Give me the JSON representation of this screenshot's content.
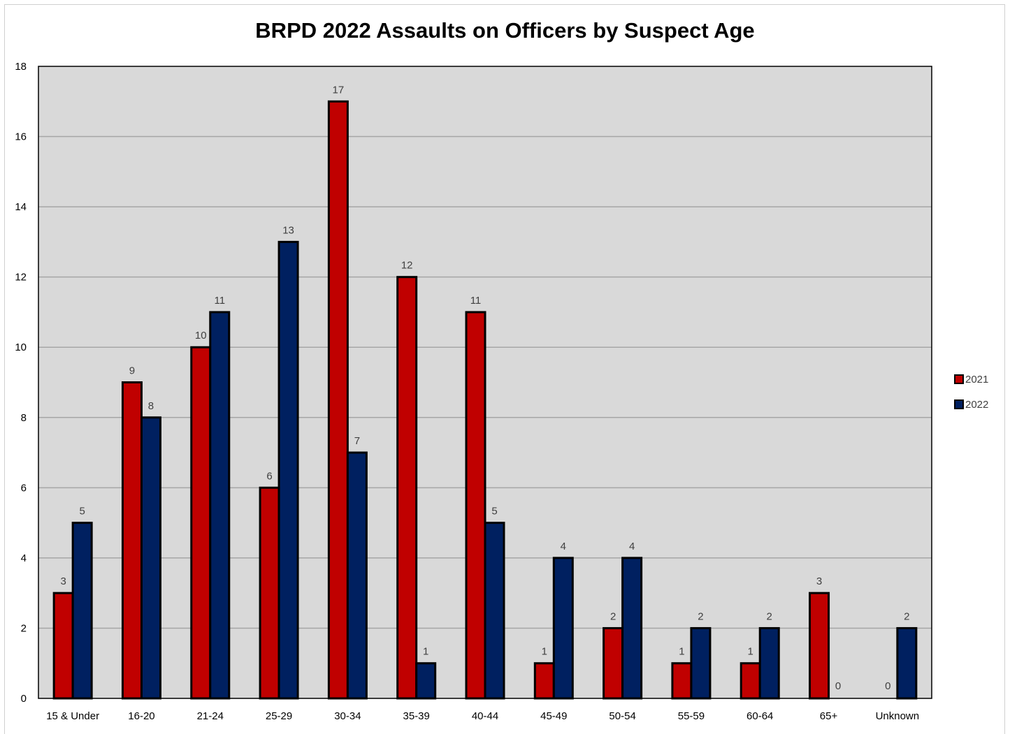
{
  "chart_data": {
    "type": "bar",
    "title": "BRPD 2022 Assaults on Officers by Suspect Age",
    "xlabel": "",
    "ylabel": "",
    "ylim": [
      0,
      18
    ],
    "y_ticks": [
      "0",
      "2",
      "4",
      "6",
      "8",
      "10",
      "12",
      "14",
      "16",
      "18"
    ],
    "grid": true,
    "legend_position": "right",
    "categories": [
      "15 & Under",
      "16-20",
      "21-24",
      "25-29",
      "30-34",
      "35-39",
      "40-44",
      "45-49",
      "50-54",
      "55-59",
      "60-64",
      "65+",
      "Unknown"
    ],
    "series": [
      {
        "name": "2021",
        "color": "#c00000",
        "values": [
          3,
          9,
          10,
          6,
          17,
          12,
          11,
          1,
          2,
          1,
          1,
          3,
          0
        ]
      },
      {
        "name": "2022",
        "color": "#002060",
        "values": [
          5,
          8,
          11,
          13,
          7,
          1,
          5,
          4,
          4,
          2,
          2,
          0,
          2
        ]
      }
    ],
    "plot_background": "#d9d9d9"
  }
}
